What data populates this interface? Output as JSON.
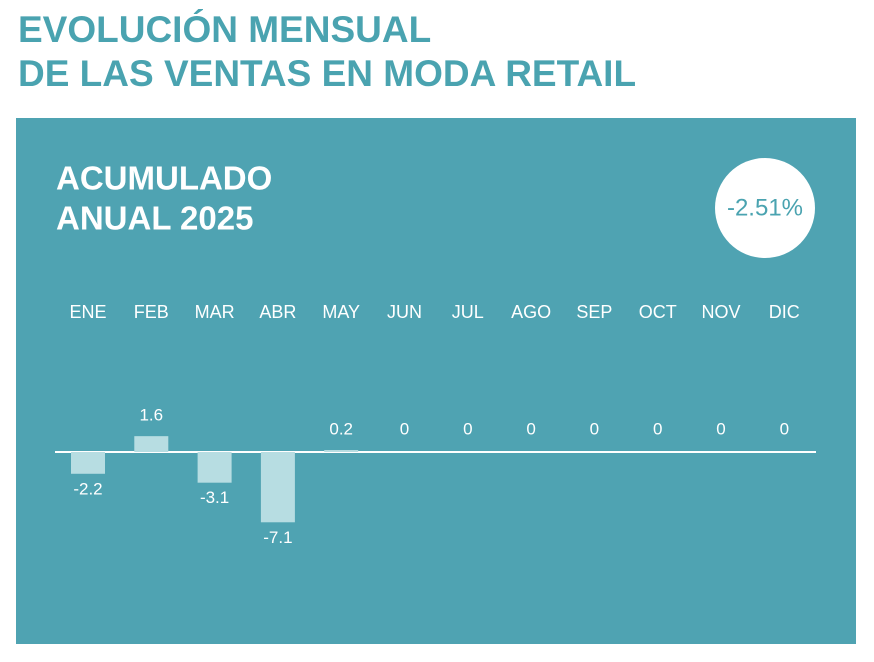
{
  "chart_data": {
    "type": "bar",
    "title": [
      "EVOLUCIÓN MENSUAL",
      "DE LAS VENTAS EN MODA RETAIL"
    ],
    "subtitle": [
      "ACUMULADO",
      "ANUAL 2025"
    ],
    "annotation": "-2.51%",
    "categories": [
      "ENE",
      "FEB",
      "MAR",
      "ABR",
      "MAY",
      "JUN",
      "JUL",
      "AGO",
      "SEP",
      "OCT",
      "NOV",
      "DIC"
    ],
    "values": [
      -2.2,
      1.6,
      -3.1,
      -7.1,
      0.2,
      0,
      0,
      0,
      0,
      0,
      0,
      0
    ],
    "color": "#b7dde2"
  }
}
